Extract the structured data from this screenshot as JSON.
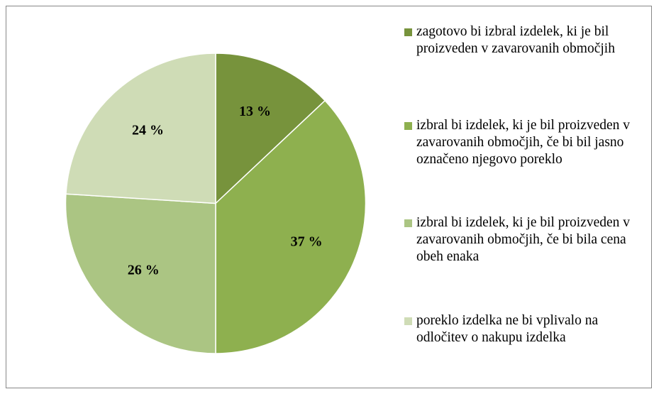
{
  "chart_data": {
    "type": "pie",
    "categories": [
      "zagotovo bi izbral izdelek, ki je bil proizveden v zavarovanih območjih",
      "izbral bi izdelek, ki je bil proizveden v zavarovanih območjih, če bi bil jasno označeno njegovo poreklo",
      "izbral bi izdelek, ki je bil proizveden v zavarovanih območjih, če bi bila cena obeh enaka",
      "poreklo izdelka ne bi vplivalo na odločitev o nakupu izdelka"
    ],
    "values": [
      13,
      37,
      26,
      24
    ],
    "value_labels": [
      "13 %",
      "37 %",
      "26 %",
      "24 %"
    ],
    "colors": [
      "#77933c",
      "#8eb04f",
      "#abc583",
      "#cfdcb6"
    ],
    "legend": "right"
  }
}
